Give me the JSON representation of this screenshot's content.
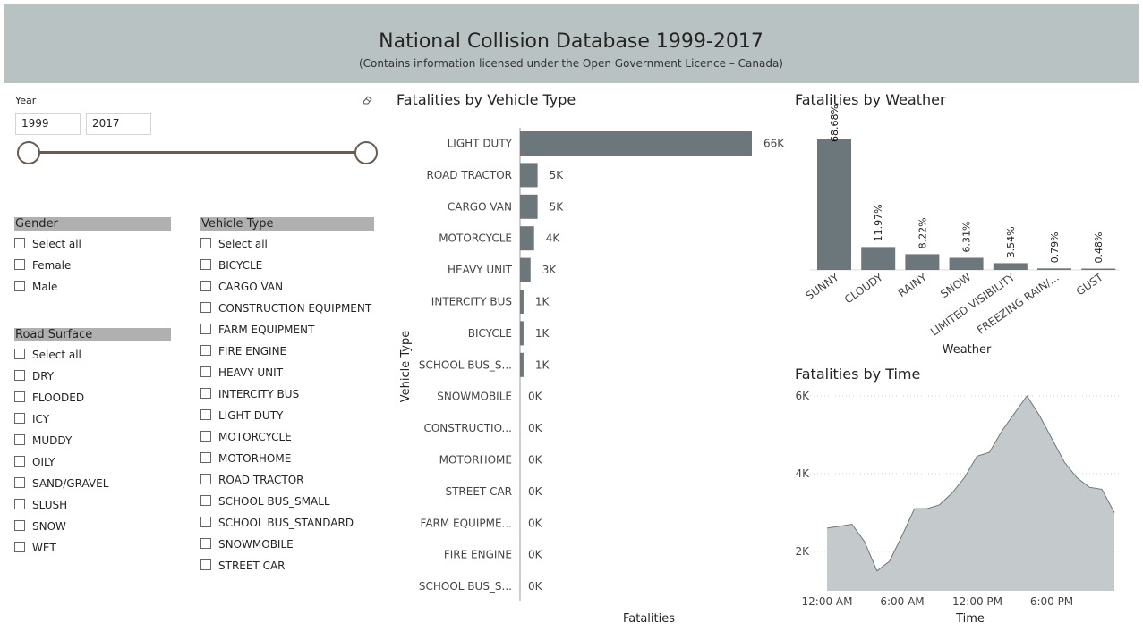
{
  "banner": {
    "title": "National Collision Database 1999-2017",
    "subtitle": "(Contains information licensed under the Open Government Licence – Canada)"
  },
  "year_slicer": {
    "label": "Year",
    "start": "1999",
    "end": "2017",
    "range_fraction": [
      0,
      1
    ]
  },
  "gender_slicer": {
    "header": "Gender",
    "items": [
      "Select all",
      "Female",
      "Male"
    ]
  },
  "road_surface_slicer": {
    "header": "Road Surface",
    "items": [
      "Select all",
      "DRY",
      "FLOODED",
      "ICY",
      "MUDDY",
      "OILY",
      "SAND/GRAVEL",
      "SLUSH",
      "SNOW",
      "WET"
    ]
  },
  "vehicle_type_slicer": {
    "header": "Vehicle Type",
    "items": [
      "Select all",
      "BICYCLE",
      "CARGO VAN",
      "CONSTRUCTION EQUIPMENT",
      "FARM EQUIPMENT",
      "FIRE ENGINE",
      "HEAVY UNIT",
      "INTERCITY BUS",
      "LIGHT DUTY",
      "MOTORCYCLE",
      "MOTORHOME",
      "ROAD TRACTOR",
      "SCHOOL BUS_SMALL",
      "SCHOOL BUS_STANDARD",
      "SNOWMOBILE",
      "STREET CAR"
    ]
  },
  "colors": {
    "bar": "#6c777b",
    "area_fill": "#c4c9cc",
    "area_line": "#6c777b",
    "slicer_header": "#b0b0b0",
    "banner": "#b8c2c3",
    "slider": "#6b5b4f"
  },
  "chart_data": [
    {
      "type": "bar",
      "orientation": "horizontal",
      "title": "Fatalities by Vehicle Type",
      "xlabel": "Fatalities",
      "ylabel": "Vehicle Type",
      "categories": [
        "LIGHT DUTY",
        "ROAD TRACTOR",
        "CARGO VAN",
        "MOTORCYCLE",
        "HEAVY UNIT",
        "INTERCITY BUS",
        "BICYCLE",
        "SCHOOL BUS_S...",
        "SNOWMOBILE",
        "CONSTRUCTIO...",
        "MOTORHOME",
        "STREET CAR",
        "FARM EQUIPME...",
        "FIRE ENGINE",
        "SCHOOL BUS_S..."
      ],
      "values": [
        66,
        5,
        5,
        4,
        3,
        1,
        1,
        1,
        0,
        0,
        0,
        0,
        0,
        0,
        0
      ],
      "labels": [
        "66K",
        "5K",
        "5K",
        "4K",
        "3K",
        "1K",
        "1K",
        "1K",
        "0K",
        "0K",
        "0K",
        "0K",
        "0K",
        "0K",
        "0K"
      ],
      "xlim": [
        0,
        66
      ]
    },
    {
      "type": "bar",
      "title": "Fatalities by Weather",
      "xlabel": "Weather",
      "categories": [
        "SUNNY",
        "CLOUDY",
        "RAINY",
        "SNOW",
        "LIMITED VISIBILITY",
        "FREEZING RAIN/...",
        "GUST"
      ],
      "values": [
        68.68,
        11.97,
        8.22,
        6.31,
        3.54,
        0.79,
        0.48
      ],
      "labels": [
        "68.68%",
        "11.97%",
        "8.22%",
        "6.31%",
        "3.54%",
        "0.79%",
        "0.48%"
      ],
      "ylim": [
        0,
        68.68
      ]
    },
    {
      "type": "area",
      "title": "Fatalities by Time",
      "xlabel": "Time",
      "x_ticks": [
        "12:00 AM",
        "6:00 AM",
        "12:00 PM",
        "6:00 PM"
      ],
      "y_ticks": [
        "2K",
        "4K",
        "6K"
      ],
      "x": [
        0,
        1,
        2,
        3,
        4,
        5,
        6,
        7,
        8,
        9,
        10,
        11,
        12,
        13,
        14,
        15,
        16,
        17,
        18,
        19,
        20,
        21,
        22,
        23
      ],
      "y": [
        2600,
        2650,
        2700,
        2250,
        1500,
        1750,
        2400,
        3100,
        3100,
        3200,
        3500,
        3900,
        4450,
        4550,
        5100,
        5550,
        6000,
        5500,
        4900,
        4300,
        3900,
        3650,
        3600,
        3000
      ],
      "ylim": [
        1000,
        6000
      ],
      "grid": true
    }
  ]
}
